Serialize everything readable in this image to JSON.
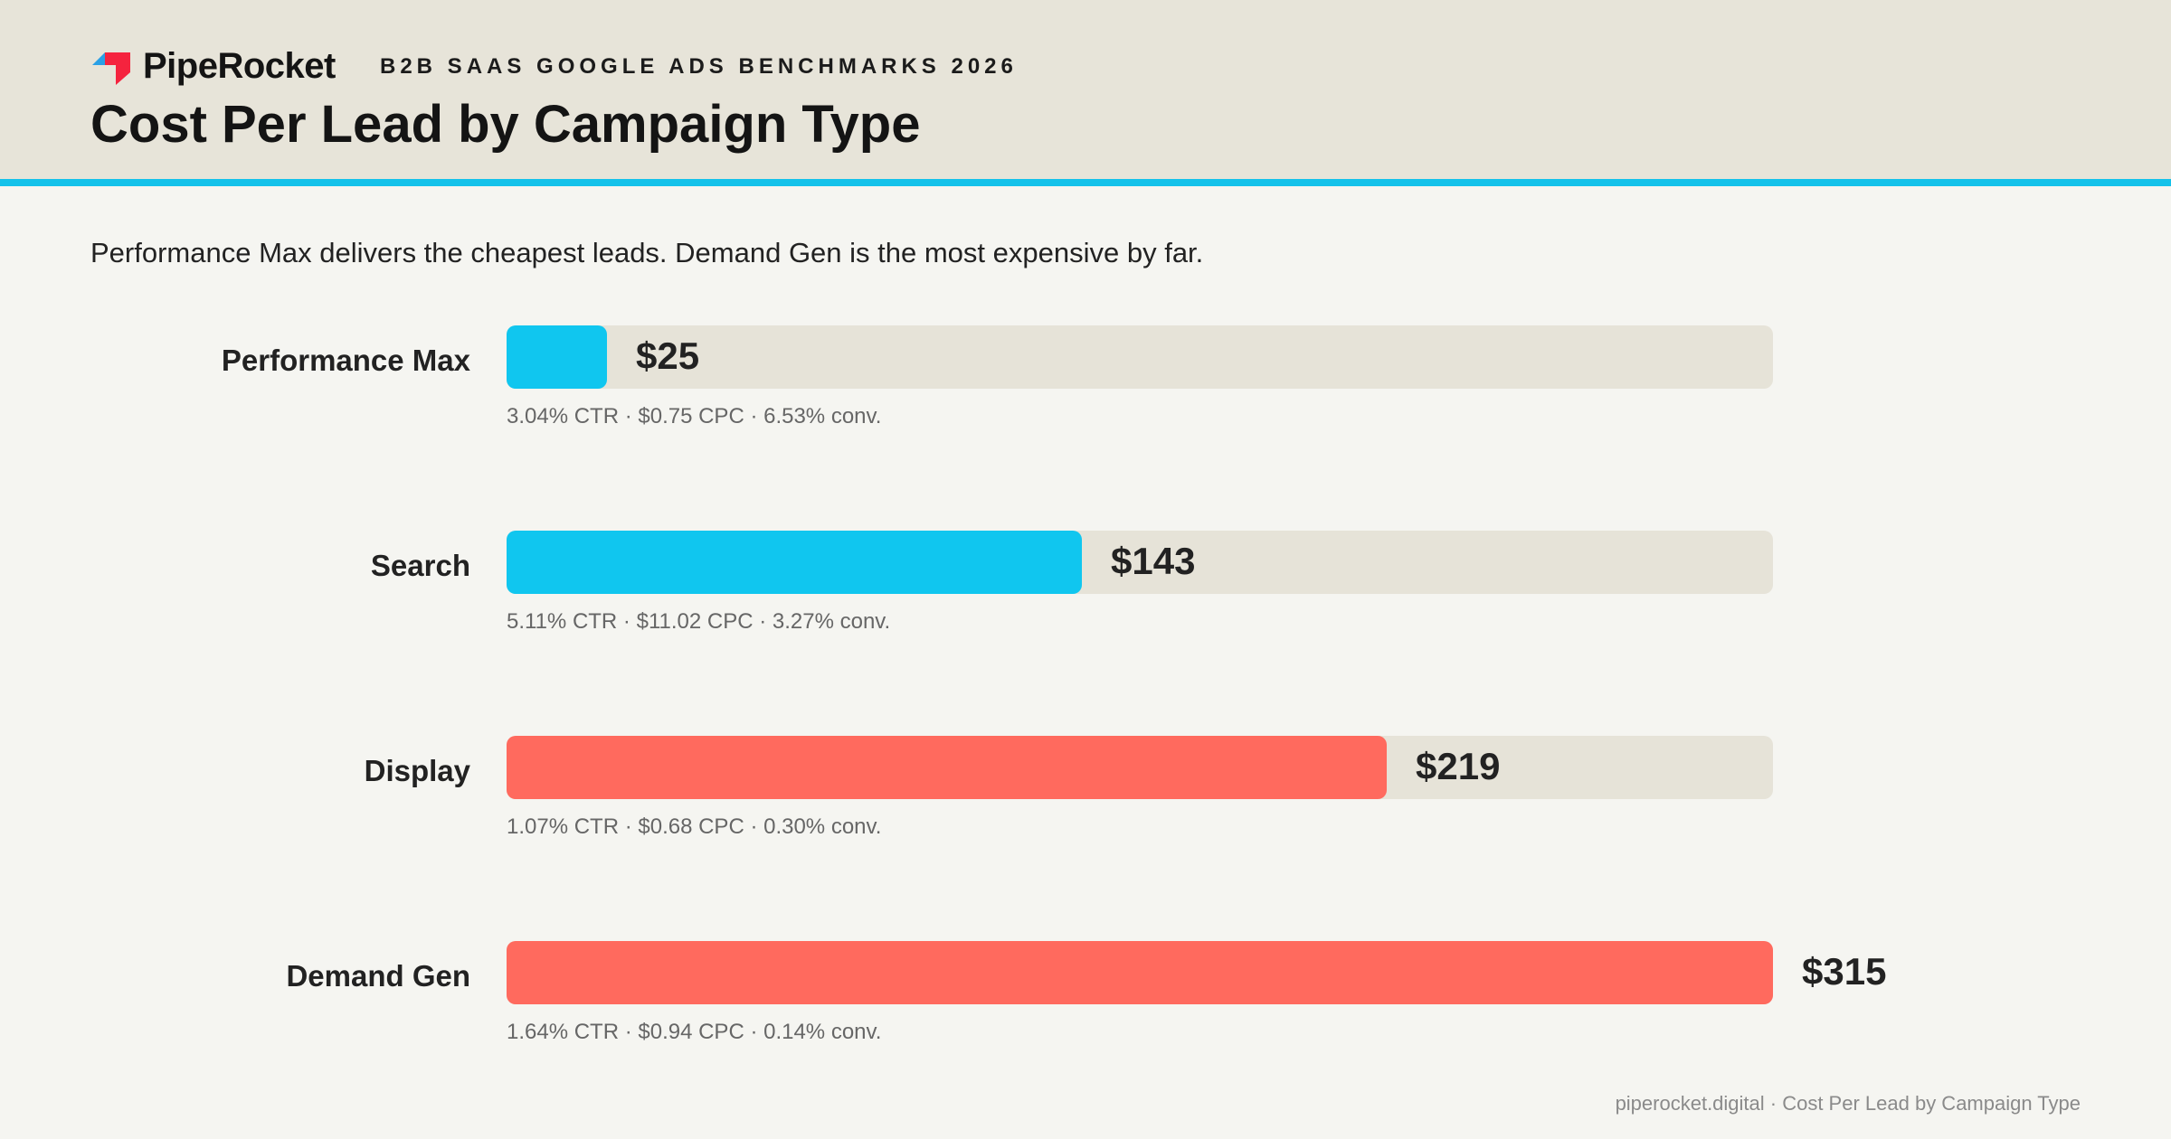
{
  "brand": {
    "name": "PipeRocket",
    "logo_icon": "piperocket-logo-icon"
  },
  "header": {
    "kicker": "B2B SAAS GOOGLE ADS BENCHMARKS 2026",
    "title": "Cost Per Lead by Campaign Type"
  },
  "subtitle": "Performance Max delivers the cheapest leads. Demand Gen is the most expensive by far.",
  "colors": {
    "accent": "#14c2ea",
    "low_cost": "#10c6ef",
    "high_cost": "#ff6a5e",
    "track": "#e6e3d8",
    "header_bg": "#e7e4d9",
    "page_bg": "#f5f5f1"
  },
  "chart_data": {
    "type": "bar",
    "orientation": "horizontal",
    "categories": [
      "Performance Max",
      "Search",
      "Display",
      "Demand Gen"
    ],
    "values": [
      25,
      143,
      219,
      315
    ],
    "value_labels": [
      "$25",
      "$143",
      "$219",
      "$315"
    ],
    "bar_colors": [
      "#10c6ef",
      "#10c6ef",
      "#ff6a5e",
      "#ff6a5e"
    ],
    "metrics": [
      "3.04% CTR · $0.75 CPC · 6.53% conv.",
      "5.11% CTR · $11.02 CPC · 3.27% conv.",
      "1.07% CTR · $0.68 CPC · 0.30% conv.",
      "1.64% CTR · $0.94 CPC · 0.14% conv."
    ],
    "xlim": [
      0,
      315
    ],
    "grid": false,
    "legend": "none"
  },
  "footer": {
    "text": "piperocket.digital · Cost Per Lead by Campaign Type"
  }
}
